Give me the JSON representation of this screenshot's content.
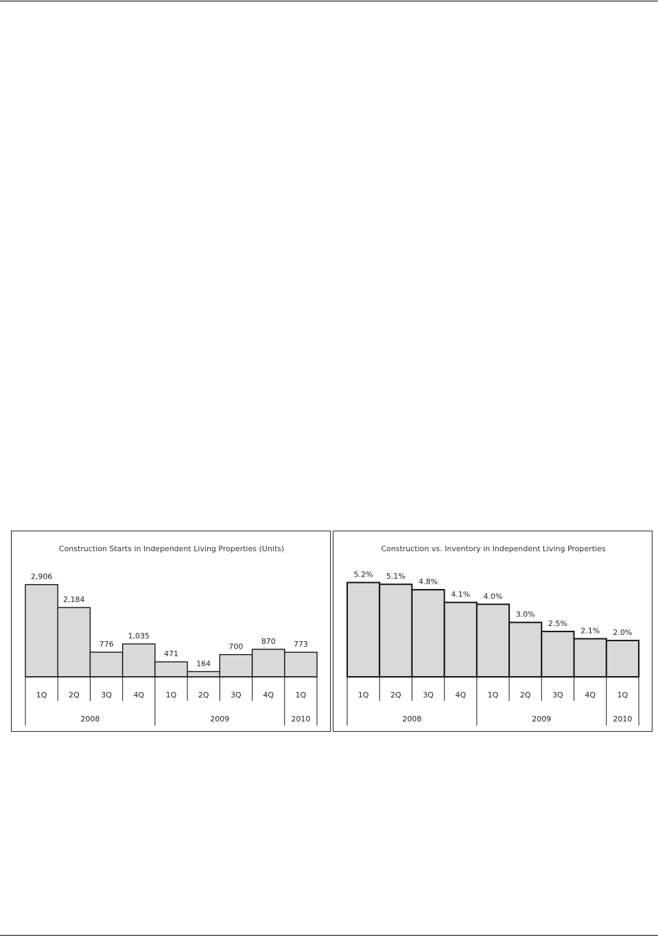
{
  "colors": {
    "bar_fill": "#d9d9d9",
    "bar_stroke": "#111111",
    "rule": "#000000"
  },
  "chart_data": [
    {
      "type": "bar",
      "title": "Construction Starts in Independent Living Properties (Units)",
      "xlabel": "",
      "ylabel": "",
      "categories": [
        "1Q",
        "2Q",
        "3Q",
        "4Q",
        "1Q",
        "2Q",
        "3Q",
        "4Q",
        "1Q"
      ],
      "groups": [
        {
          "label": "2008",
          "span": 4
        },
        {
          "label": "2009",
          "span": 4
        },
        {
          "label": "2010",
          "span": 1
        }
      ],
      "values": [
        2906,
        2184,
        776,
        1035,
        471,
        164,
        700,
        870,
        773
      ],
      "value_labels": [
        "2,906",
        "2,184",
        "776",
        "1,035",
        "471",
        "164",
        "700",
        "870",
        "773"
      ],
      "ylim": [
        0,
        3200
      ],
      "grid": false,
      "legend": "none"
    },
    {
      "type": "bar",
      "title": "Construction vs. Inventory in Independent Living Properties",
      "xlabel": "",
      "ylabel": "",
      "categories": [
        "1Q",
        "2Q",
        "3Q",
        "4Q",
        "1Q",
        "2Q",
        "3Q",
        "4Q",
        "1Q"
      ],
      "groups": [
        {
          "label": "2008",
          "span": 4
        },
        {
          "label": "2009",
          "span": 4
        },
        {
          "label": "2010",
          "span": 1
        }
      ],
      "values": [
        5.2,
        5.1,
        4.8,
        4.1,
        4.0,
        3.0,
        2.5,
        2.1,
        2.0
      ],
      "value_labels": [
        "5.2%",
        "5.1%",
        "4.8%",
        "4.1%",
        "4.0%",
        "3.0%",
        "2.5%",
        "2.1%",
        "2.0%"
      ],
      "ylim": [
        0,
        5.6
      ],
      "grid": false,
      "legend": "none"
    }
  ]
}
